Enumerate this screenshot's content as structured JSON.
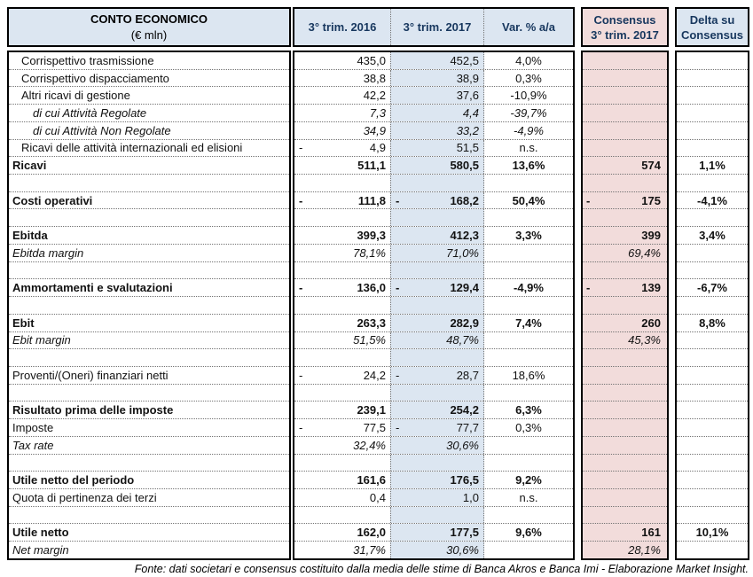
{
  "header": {
    "title_line1": "CONTO ECONOMICO",
    "title_line2": "(€ mln)",
    "col_2016": "3° trim. 2016",
    "col_2017": "3° trim. 2017",
    "col_var": "Var. % a/a",
    "col_consensus_line1": "Consensus",
    "col_consensus_line2": "3° trim. 2017",
    "col_delta_line1": "Delta su",
    "col_delta_line2": "Consensus"
  },
  "colors": {
    "header_blue": "#dce6f1",
    "column_2017_blue": "#dce6f1",
    "consensus_pink": "#f2dcdb",
    "header_text_navy": "#17375e",
    "body_text": "#121212",
    "border": "#000000",
    "dotted_grid": "#737373"
  },
  "rows": [
    {
      "label": "Corrispettivo trasmissione",
      "style": "normal",
      "indent": 1,
      "n16": "",
      "v16": "435,0",
      "n17": "",
      "v17": "452,5",
      "var": "4,0%",
      "nc": "",
      "cons": "",
      "delta": ""
    },
    {
      "label": "Corrispettivo dispacciamento",
      "style": "normal",
      "indent": 1,
      "n16": "",
      "v16": "38,8",
      "n17": "",
      "v17": "38,9",
      "var": "0,3%",
      "nc": "",
      "cons": "",
      "delta": ""
    },
    {
      "label": "Altri ricavi di gestione",
      "style": "normal",
      "indent": 1,
      "n16": "",
      "v16": "42,2",
      "n17": "",
      "v17": "37,6",
      "var": "-10,9%",
      "nc": "",
      "cons": "",
      "delta": ""
    },
    {
      "label": "di cui Attività Regolate",
      "style": "italic",
      "indent": 2,
      "n16": "",
      "v16": "7,3",
      "n17": "",
      "v17": "4,4",
      "var": "-39,7%",
      "nc": "",
      "cons": "",
      "delta": ""
    },
    {
      "label": "di cui Attività Non Regolate",
      "style": "italic",
      "indent": 2,
      "n16": "",
      "v16": "34,9",
      "n17": "",
      "v17": "33,2",
      "var": "-4,9%",
      "nc": "",
      "cons": "",
      "delta": ""
    },
    {
      "label": "Ricavi delle attività internazionali ed elisioni",
      "style": "normal",
      "indent": 1,
      "n16": "-",
      "v16": "4,9",
      "n17": "",
      "v17": "51,5",
      "var": "n.s.",
      "nc": "",
      "cons": "",
      "delta": ""
    },
    {
      "label": "Ricavi",
      "style": "bold",
      "indent": 0,
      "n16": "",
      "v16": "511,1",
      "n17": "",
      "v17": "580,5",
      "var": "13,6%",
      "nc": "",
      "cons": "574",
      "delta": "1,1%"
    },
    {
      "label": "",
      "style": "blank",
      "indent": 0,
      "n16": "",
      "v16": "",
      "n17": "",
      "v17": "",
      "var": "",
      "nc": "",
      "cons": "",
      "delta": ""
    },
    {
      "label": "Costi operativi",
      "style": "bold",
      "indent": 0,
      "n16": "-",
      "v16": "111,8",
      "n17": "-",
      "v17": "168,2",
      "var": "50,4%",
      "nc": "-",
      "cons": "175",
      "delta": "-4,1%"
    },
    {
      "label": "",
      "style": "blank",
      "indent": 0,
      "n16": "",
      "v16": "",
      "n17": "",
      "v17": "",
      "var": "",
      "nc": "",
      "cons": "",
      "delta": ""
    },
    {
      "label": "Ebitda",
      "style": "bold",
      "indent": 0,
      "n16": "",
      "v16": "399,3",
      "n17": "",
      "v17": "412,3",
      "var": "3,3%",
      "nc": "",
      "cons": "399",
      "delta": "3,4%"
    },
    {
      "label": "Ebitda margin",
      "style": "italic",
      "indent": 0,
      "n16": "",
      "v16": "78,1%",
      "n17": "",
      "v17": "71,0%",
      "var": "",
      "nc": "",
      "cons": "69,4%",
      "delta": ""
    },
    {
      "label": "",
      "style": "blank",
      "indent": 0,
      "n16": "",
      "v16": "",
      "n17": "",
      "v17": "",
      "var": "",
      "nc": "",
      "cons": "",
      "delta": ""
    },
    {
      "label": "Ammortamenti e svalutazioni",
      "style": "bold",
      "indent": 0,
      "n16": "-",
      "v16": "136,0",
      "n17": "-",
      "v17": "129,4",
      "var": "-4,9%",
      "nc": "-",
      "cons": "139",
      "delta": "-6,7%"
    },
    {
      "label": "",
      "style": "blank",
      "indent": 0,
      "n16": "",
      "v16": "",
      "n17": "",
      "v17": "",
      "var": "",
      "nc": "",
      "cons": "",
      "delta": ""
    },
    {
      "label": "Ebit",
      "style": "bold",
      "indent": 0,
      "n16": "",
      "v16": "263,3",
      "n17": "",
      "v17": "282,9",
      "var": "7,4%",
      "nc": "",
      "cons": "260",
      "delta": "8,8%"
    },
    {
      "label": "Ebit margin",
      "style": "italic",
      "indent": 0,
      "n16": "",
      "v16": "51,5%",
      "n17": "",
      "v17": "48,7%",
      "var": "",
      "nc": "",
      "cons": "45,3%",
      "delta": ""
    },
    {
      "label": "",
      "style": "blank",
      "indent": 0,
      "n16": "",
      "v16": "",
      "n17": "",
      "v17": "",
      "var": "",
      "nc": "",
      "cons": "",
      "delta": ""
    },
    {
      "label": "Proventi/(Oneri) finanziari netti",
      "style": "normal",
      "indent": 0,
      "n16": "-",
      "v16": "24,2",
      "n17": "-",
      "v17": "28,7",
      "var": "18,6%",
      "nc": "",
      "cons": "",
      "delta": ""
    },
    {
      "label": "",
      "style": "blank",
      "indent": 0,
      "n16": "",
      "v16": "",
      "n17": "",
      "v17": "",
      "var": "",
      "nc": "",
      "cons": "",
      "delta": ""
    },
    {
      "label": "Risultato prima delle imposte",
      "style": "bold",
      "indent": 0,
      "n16": "",
      "v16": "239,1",
      "n17": "",
      "v17": "254,2",
      "var": "6,3%",
      "nc": "",
      "cons": "",
      "delta": ""
    },
    {
      "label": "Imposte",
      "style": "normal",
      "indent": 0,
      "n16": "-",
      "v16": "77,5",
      "n17": "-",
      "v17": "77,7",
      "var": "0,3%",
      "nc": "",
      "cons": "",
      "delta": ""
    },
    {
      "label": "Tax rate",
      "style": "italic",
      "indent": 0,
      "n16": "",
      "v16": "32,4%",
      "n17": "",
      "v17": "30,6%",
      "var": "",
      "nc": "",
      "cons": "",
      "delta": ""
    },
    {
      "label": "",
      "style": "blank",
      "indent": 0,
      "n16": "",
      "v16": "",
      "n17": "",
      "v17": "",
      "var": "",
      "nc": "",
      "cons": "",
      "delta": ""
    },
    {
      "label": "Utile netto del periodo",
      "style": "bold",
      "indent": 0,
      "n16": "",
      "v16": "161,6",
      "n17": "",
      "v17": "176,5",
      "var": "9,2%",
      "nc": "",
      "cons": "",
      "delta": ""
    },
    {
      "label": "Quota di pertinenza dei terzi",
      "style": "normal",
      "indent": 0,
      "n16": "",
      "v16": "0,4",
      "n17": "",
      "v17": "1,0",
      "var": "n.s.",
      "nc": "",
      "cons": "",
      "delta": ""
    },
    {
      "label": "",
      "style": "blank",
      "indent": 0,
      "n16": "",
      "v16": "",
      "n17": "",
      "v17": "",
      "var": "",
      "nc": "",
      "cons": "",
      "delta": ""
    },
    {
      "label": "Utile netto",
      "style": "bold",
      "indent": 0,
      "n16": "",
      "v16": "162,0",
      "n17": "",
      "v17": "177,5",
      "var": "9,6%",
      "nc": "",
      "cons": "161",
      "delta": "10,1%"
    },
    {
      "label": "Net margin",
      "style": "italic",
      "indent": 0,
      "n16": "",
      "v16": "31,7%",
      "n17": "",
      "v17": "30,6%",
      "var": "",
      "nc": "",
      "cons": "28,1%",
      "delta": ""
    }
  ],
  "footer": {
    "source": "Fonte: dati societari e consensus costituito dalla media delle stime di Banca Akros e Banca Imi - Elaborazione Market Insight."
  }
}
